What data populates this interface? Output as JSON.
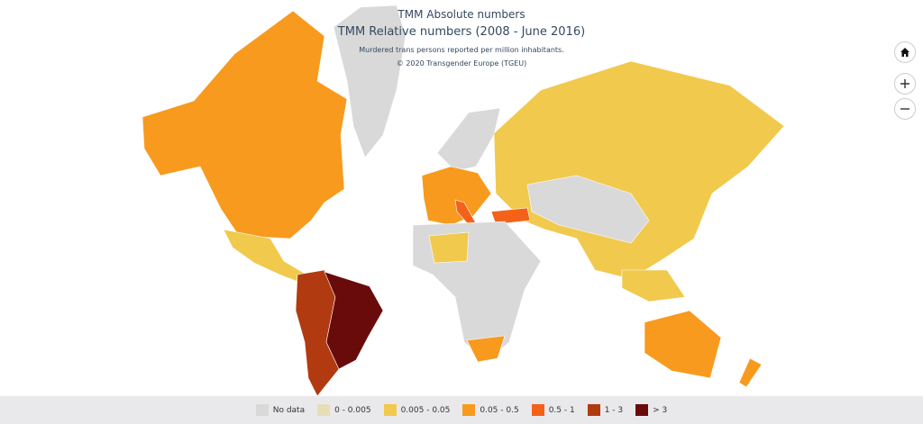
{
  "header": {
    "title": "TMM Absolute numbers",
    "subtitle": "TMM Relative numbers (2008 - June 2016)",
    "description": "Murdered trans persons reported per million inhabitants.",
    "copyright": "© 2020 Transgender Europe (TGEU)"
  },
  "legend": [
    {
      "label": "No data",
      "color": "#d9d9d9"
    },
    {
      "label": "0 - 0.005",
      "color": "#e6dfb6"
    },
    {
      "label": "0.005 - 0.05",
      "color": "#f1c94d"
    },
    {
      "label": "0.05 - 0.5",
      "color": "#f79a1e"
    },
    {
      "label": "0.5 - 1",
      "color": "#f4621a"
    },
    {
      "label": "1 - 3",
      "color": "#b23a10"
    },
    {
      "label": "> 3",
      "color": "#6a0b0b"
    }
  ]
}
